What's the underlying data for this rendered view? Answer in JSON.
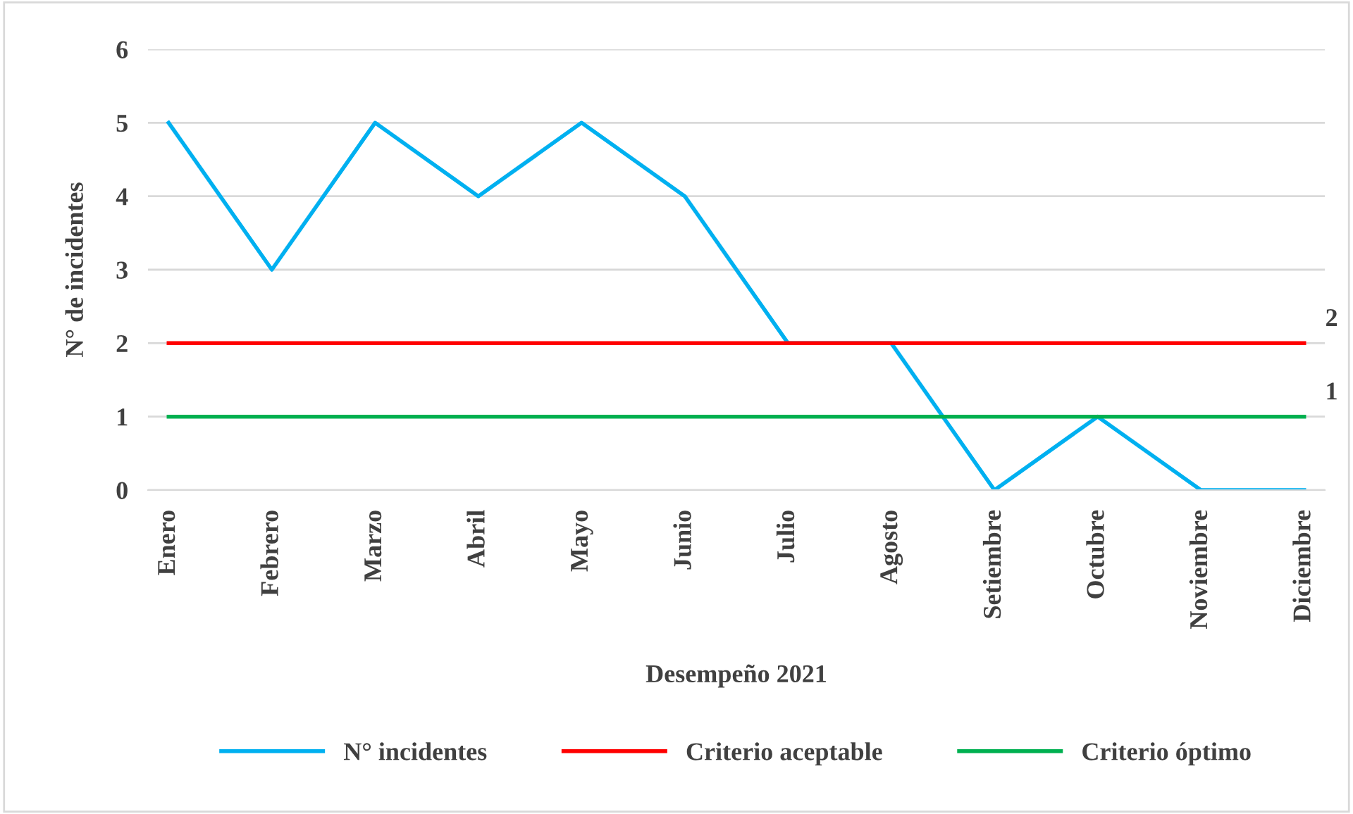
{
  "chart_data": {
    "type": "line",
    "xlabel": "Desempeño 2021",
    "ylabel": "N° de incidentes",
    "categories": [
      "Enero",
      "Febrero",
      "Marzo",
      "Abril",
      "Mayo",
      "Junio",
      "Julio",
      "Agosto",
      "Setiembre",
      "Octubre",
      "Noviembre",
      "Diciembre"
    ],
    "series": [
      {
        "name": "N° incidentes",
        "color": "#00b0f0",
        "values": [
          5,
          3,
          5,
          4,
          5,
          4,
          2,
          2,
          0,
          1,
          0,
          0
        ]
      },
      {
        "name": "Criterio aceptable",
        "color": "#ff0000",
        "values": [
          2,
          2,
          2,
          2,
          2,
          2,
          2,
          2,
          2,
          2,
          2,
          2
        ],
        "value_labels": [
          null,
          null,
          null,
          null,
          null,
          null,
          null,
          null,
          null,
          null,
          null,
          "2"
        ]
      },
      {
        "name": "Criterio óptimo",
        "color": "#00b050",
        "values": [
          1,
          1,
          1,
          1,
          1,
          1,
          1,
          1,
          1,
          1,
          1,
          1
        ],
        "value_labels": [
          null,
          null,
          null,
          null,
          null,
          null,
          null,
          null,
          null,
          null,
          null,
          "1"
        ]
      }
    ],
    "ylim": [
      0,
      6
    ],
    "yticks": [
      0,
      1,
      2,
      3,
      4,
      5,
      6
    ],
    "grid": "y",
    "legend": "bottom"
  }
}
